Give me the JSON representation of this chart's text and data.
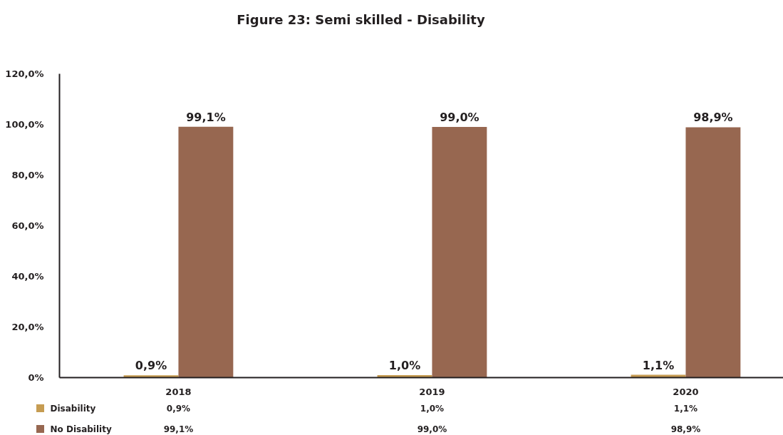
{
  "chart_data": {
    "type": "bar",
    "title": "Figure 23: Semi skilled - Disability",
    "categories": [
      "2018",
      "2019",
      "2020"
    ],
    "series": [
      {
        "name": "Disability",
        "color": "#c69c52",
        "values": [
          0.9,
          1.0,
          1.1
        ],
        "value_labels": [
          "0,9%",
          "1,0%",
          "1,1%"
        ]
      },
      {
        "name": "No Disability",
        "color": "#976750",
        "values": [
          99.1,
          99.0,
          98.9
        ],
        "value_labels": [
          "99,1%",
          "99,0%",
          "98,9%"
        ]
      }
    ],
    "ylim": [
      0,
      120
    ],
    "yticks": [
      {
        "value": 0,
        "label": "0%"
      },
      {
        "value": 20,
        "label": "20,0%"
      },
      {
        "value": 40,
        "label": "40,0%"
      },
      {
        "value": 60,
        "label": "60,0%"
      },
      {
        "value": 80,
        "label": "80,0%"
      },
      {
        "value": 100,
        "label": "100,0%"
      },
      {
        "value": 120,
        "label": "120,0%"
      }
    ],
    "grid": false,
    "legend": "bottom"
  }
}
